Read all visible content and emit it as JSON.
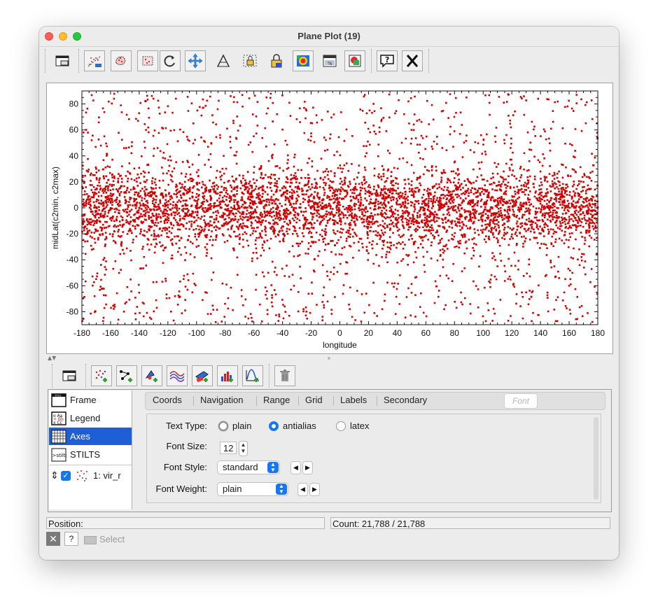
{
  "window": {
    "title": "Plane Plot (19)"
  },
  "toolbar": {
    "icons": [
      "replot-icon",
      "subset-from-visible-icon",
      "draw-blob-icon",
      "draw-region-icon",
      "rotate-icon",
      "navigate-icon",
      "axis-lock-icon",
      "aspect-lock-icon",
      "lock-icon",
      "legend-icon",
      "density-icon",
      "scale-icon",
      "image-export-icon",
      "help-icon",
      "close-icon"
    ]
  },
  "plot": {
    "xlabel": "longitude",
    "ylabel": "midLat(c2min, c2max)",
    "xticks": [
      "-180",
      "-160",
      "-140",
      "-120",
      "-100",
      "-80",
      "-60",
      "-40",
      "-20",
      "0",
      "20",
      "40",
      "60",
      "80",
      "100",
      "120",
      "140",
      "160",
      "180"
    ],
    "yticks": [
      "80",
      "60",
      "40",
      "20",
      "0",
      "-20",
      "-40",
      "-60",
      "-80"
    ],
    "point_color": "#d00000"
  },
  "chart_data": {
    "type": "scatter",
    "title": "",
    "xlabel": "longitude",
    "ylabel": "midLat(c2min, c2max)",
    "xlim": [
      -180,
      180
    ],
    "ylim": [
      -90,
      90
    ],
    "grid": false,
    "x_tick_values": [
      -180,
      -160,
      -140,
      -120,
      -100,
      -80,
      -60,
      -40,
      -20,
      0,
      20,
      40,
      60,
      80,
      100,
      120,
      140,
      160,
      180
    ],
    "y_tick_values": [
      -80,
      -60,
      -40,
      -20,
      0,
      20,
      40,
      60,
      80
    ],
    "series": [
      {
        "color": "#d00000",
        "marker": "square",
        "count": 21788,
        "distribution": "dense band around midLat -30..+30 across all longitudes, sparser toward +/-90",
        "points_sample": [
          [
            -178,
            2
          ],
          [
            -176,
            -18
          ],
          [
            -170,
            30
          ],
          [
            -165,
            -40
          ],
          [
            -160,
            5
          ],
          [
            -150,
            12
          ],
          [
            -142,
            -22
          ],
          [
            -130,
            40
          ],
          [
            -120,
            -5
          ],
          [
            -110,
            18
          ],
          [
            -100,
            -30
          ],
          [
            -90,
            8
          ],
          [
            -80,
            -12
          ],
          [
            -70,
            25
          ],
          [
            -60,
            -3
          ],
          [
            -50,
            -50
          ],
          [
            -40,
            15
          ],
          [
            -30,
            -20
          ],
          [
            -20,
            55
          ],
          [
            -10,
            0
          ],
          [
            0,
            -8
          ],
          [
            10,
            22
          ],
          [
            20,
            -35
          ],
          [
            30,
            10
          ],
          [
            40,
            -15
          ],
          [
            50,
            60
          ],
          [
            60,
            3
          ],
          [
            70,
            -25
          ],
          [
            80,
            35
          ],
          [
            90,
            -10
          ],
          [
            100,
            14
          ],
          [
            110,
            -45
          ],
          [
            120,
            6
          ],
          [
            130,
            -18
          ],
          [
            140,
            28
          ],
          [
            150,
            -2
          ],
          [
            160,
            -60
          ],
          [
            170,
            20
          ],
          [
            178,
            -5
          ]
        ]
      }
    ]
  },
  "layer_toolbar": {
    "icons": [
      "layer-manager-icon",
      "add-position-layer-icon",
      "add-pair-layer-icon",
      "add-area-layer-icon",
      "add-function-layer-icon",
      "add-spectrogram-layer-icon",
      "add-histogram-layer-icon",
      "add-fit-layer-icon",
      "delete-layer-icon"
    ]
  },
  "controls": {
    "items": [
      {
        "label": "Frame",
        "icon": "frame-icon"
      },
      {
        "label": "Legend",
        "icon": "legend-icon"
      },
      {
        "label": "Axes",
        "icon": "axes-icon",
        "selected": true
      },
      {
        "label": "STILTS",
        "icon": "stilts-icon"
      }
    ],
    "layer": {
      "label": "1: vir_r",
      "checked": true
    }
  },
  "tabs": [
    "Coords",
    "Navigation",
    "Range",
    "Grid",
    "Labels",
    "Secondary",
    "Font"
  ],
  "active_tab": "Font",
  "font_form": {
    "text_type_label": "Text Type:",
    "text_type_options": [
      "plain",
      "antialias",
      "latex"
    ],
    "text_type_selected": "antialias",
    "font_size_label": "Font Size:",
    "font_size_value": "12",
    "font_style_label": "Font Style:",
    "font_style_value": "standard",
    "font_weight_label": "Font Weight:",
    "font_weight_value": "plain"
  },
  "status": {
    "position_label": "Position:",
    "count_text": "Count: 21,788 / 21,788"
  },
  "bottom": {
    "select_label": "Select",
    "help_label": "?",
    "close_label": "✕"
  }
}
